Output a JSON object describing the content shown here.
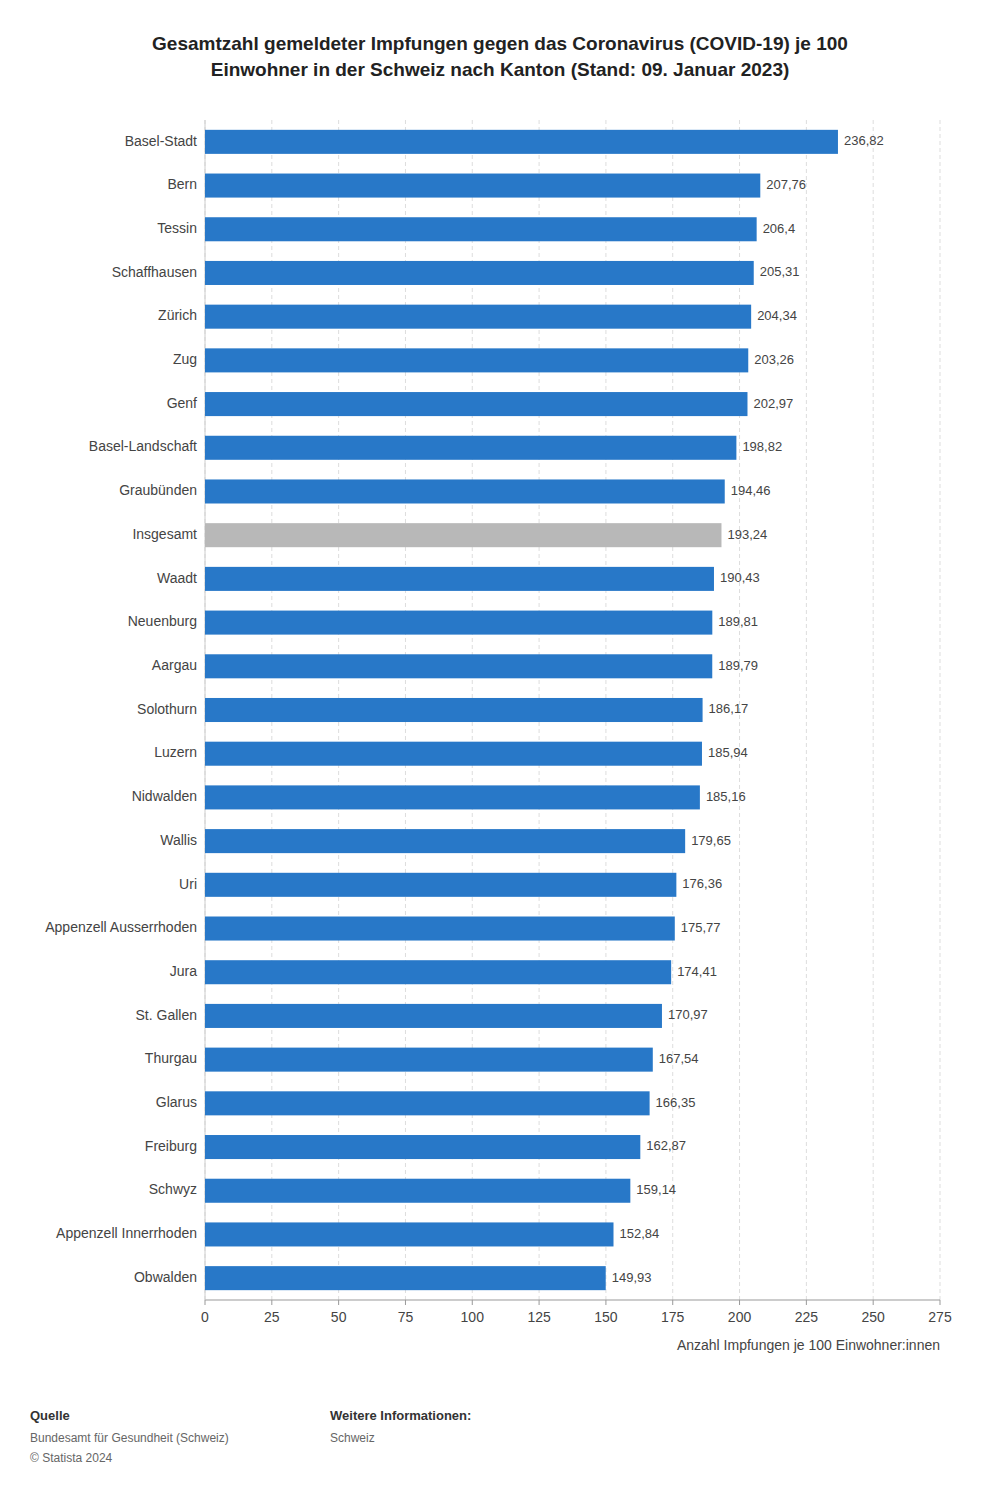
{
  "chart_data": {
    "type": "bar",
    "orientation": "horizontal",
    "title": "Gesamtzahl gemeldeter Impfungen gegen das Coronavirus (COVID-19) je 100\nEinwohner in der Schweiz nach Kanton (Stand: 09. Januar 2023)",
    "categories": [
      "Basel-Stadt",
      "Bern",
      "Tessin",
      "Schaffhausen",
      "Zürich",
      "Zug",
      "Genf",
      "Basel-Landschaft",
      "Graubünden",
      "Insgesamt",
      "Waadt",
      "Neuenburg",
      "Aargau",
      "Solothurn",
      "Luzern",
      "Nidwalden",
      "Wallis",
      "Uri",
      "Appenzell Ausserrhoden",
      "Jura",
      "St. Gallen",
      "Thurgau",
      "Glarus",
      "Freiburg",
      "Schwyz",
      "Appenzell Innerrhoden",
      "Obwalden"
    ],
    "values": [
      236.82,
      207.76,
      206.4,
      205.31,
      204.34,
      203.26,
      202.97,
      198.82,
      194.46,
      193.24,
      190.43,
      189.81,
      189.79,
      186.17,
      185.94,
      185.16,
      179.65,
      176.36,
      175.77,
      174.41,
      170.97,
      167.54,
      166.35,
      162.87,
      159.14,
      152.84,
      149.93
    ],
    "value_labels": [
      "236,82",
      "207,76",
      "206,4",
      "205,31",
      "204,34",
      "203,26",
      "202,97",
      "198,82",
      "194,46",
      "193,24",
      "190,43",
      "189,81",
      "189,79",
      "186,17",
      "185,94",
      "185,16",
      "179,65",
      "176,36",
      "175,77",
      "174,41",
      "170,97",
      "167,54",
      "166,35",
      "162,87",
      "159,14",
      "152,84",
      "149,93"
    ],
    "data_labels": true,
    "colors": [
      "#2878c8",
      "#2878c8",
      "#2878c8",
      "#2878c8",
      "#2878c8",
      "#2878c8",
      "#2878c8",
      "#2878c8",
      "#2878c8",
      "#b8b8b8",
      "#2878c8",
      "#2878c8",
      "#2878c8",
      "#2878c8",
      "#2878c8",
      "#2878c8",
      "#2878c8",
      "#2878c8",
      "#2878c8",
      "#2878c8",
      "#2878c8",
      "#2878c8",
      "#2878c8",
      "#2878c8",
      "#2878c8",
      "#2878c8",
      "#2878c8"
    ],
    "xlabel": "Anzahl Impfungen je 100 Einwohner:innen",
    "xlim": [
      0,
      275
    ],
    "xticks": [
      0,
      25,
      50,
      75,
      100,
      125,
      150,
      175,
      200,
      225,
      250,
      275
    ],
    "grid": true,
    "annotations": [
      "Quelle",
      "Bundesamt für Gesundheit (Schweiz)",
      "© Statista 2024",
      "Weitere Informationen:",
      "Schweiz"
    ]
  }
}
